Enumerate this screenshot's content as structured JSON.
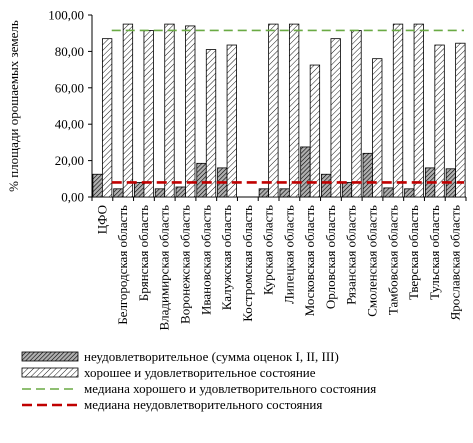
{
  "chart_data": {
    "type": "bar",
    "ylabel": "% площади орошаемых земель",
    "ylim": [
      0,
      100
    ],
    "yticks": [
      "0,00",
      "20,00",
      "40,00",
      "60,00",
      "80,00",
      "100,00"
    ],
    "categories": [
      "ЦФО",
      "Белгородская область",
      "Брянская область",
      "Владимирская область",
      "Воронежская область",
      "Ивановская область",
      "Калужская область",
      "Костромская область",
      "Курская область",
      "Липецкая область",
      "Московская область",
      "Орловская область",
      "Рязанская область",
      "Смоленская область",
      "Тамбовская область",
      "Тверская область",
      "Тульская область",
      "Ярославская область"
    ],
    "series": [
      {
        "name": "неудовлетворительное (сумма оценок I, II, III)",
        "values": [
          12.5,
          4.5,
          8.0,
          4.5,
          5.5,
          18.5,
          16.0,
          0,
          4.5,
          4.5,
          27.5,
          12.5,
          8.0,
          24.0,
          5.0,
          4.5,
          16.0,
          15.5
        ]
      },
      {
        "name": "хорошее и удовлетворительное состояние",
        "values": [
          87.0,
          95.0,
          91.5,
          95.0,
          94.0,
          81.0,
          83.5,
          0,
          95.0,
          95.0,
          72.5,
          87.0,
          91.5,
          76.0,
          95.0,
          95.0,
          83.5,
          84.5
        ]
      }
    ],
    "median_lines": [
      {
        "name": "медиана хорошего и удовлетворительного состояния",
        "value": 91.5,
        "color": "#6aaa44"
      },
      {
        "name": "медиана неудовлетворительного состояния",
        "value": 8.0,
        "color": "#c00000"
      }
    ],
    "grid": false,
    "legend_position": "bottom"
  }
}
